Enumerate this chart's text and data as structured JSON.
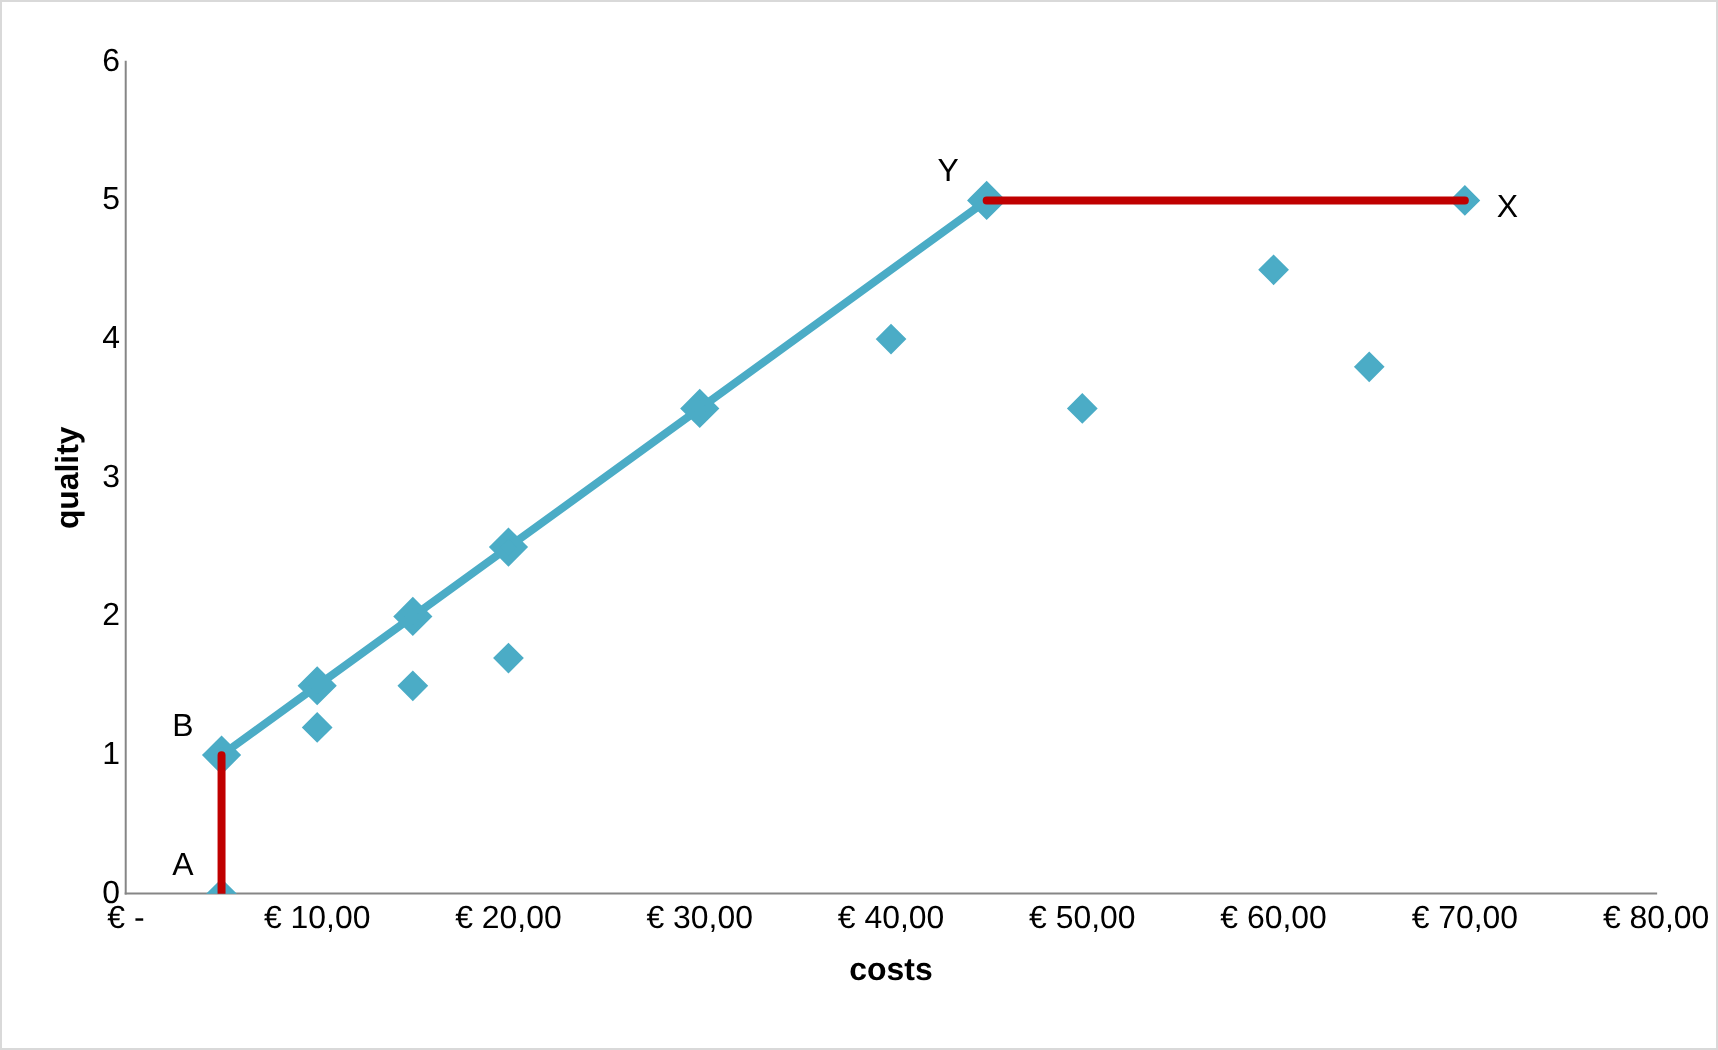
{
  "chart_data": {
    "type": "scatter",
    "xlabel": "costs",
    "ylabel": "quality",
    "xlim": [
      0,
      80
    ],
    "ylim": [
      0,
      6
    ],
    "xticks": [
      {
        "value": 0,
        "label": "€ -"
      },
      {
        "value": 10,
        "label": "€ 10,00"
      },
      {
        "value": 20,
        "label": "€ 20,00"
      },
      {
        "value": 30,
        "label": "€ 30,00"
      },
      {
        "value": 40,
        "label": "€ 40,00"
      },
      {
        "value": 50,
        "label": "€ 50,00"
      },
      {
        "value": 60,
        "label": "€ 60,00"
      },
      {
        "value": 70,
        "label": "€ 70,00"
      },
      {
        "value": 80,
        "label": "€ 80,00"
      }
    ],
    "yticks": [
      0,
      1,
      2,
      3,
      4,
      5,
      6
    ],
    "grid": false,
    "legend": false,
    "marker": "diamond",
    "series": [
      {
        "type": "line",
        "color": "#c00000",
        "x": [
          5,
          5
        ],
        "values": [
          0,
          1
        ],
        "marker": "none"
      },
      {
        "type": "line",
        "color": "#c00000",
        "x": [
          45,
          70
        ],
        "values": [
          5,
          5
        ],
        "marker": "none"
      },
      {
        "type": "line",
        "color": "#4bacc6",
        "x": [
          5,
          10,
          15,
          20,
          30,
          45
        ],
        "values": [
          1,
          1.5,
          2,
          2.5,
          3.5,
          5
        ]
      },
      {
        "color": "#4bacc6",
        "x": [
          5,
          10,
          15,
          20,
          40,
          50,
          60,
          65,
          70
        ],
        "values": [
          0,
          1.2,
          1.5,
          1.7,
          4,
          3.5,
          4.5,
          3.8,
          5
        ]
      }
    ],
    "annotations": [
      {
        "text": "A",
        "x": 5,
        "y": 0
      },
      {
        "text": "B",
        "x": 5,
        "y": 1
      },
      {
        "text": "Y",
        "x": 45,
        "y": 5
      },
      {
        "text": "X",
        "x": 70,
        "y": 5
      }
    ]
  }
}
